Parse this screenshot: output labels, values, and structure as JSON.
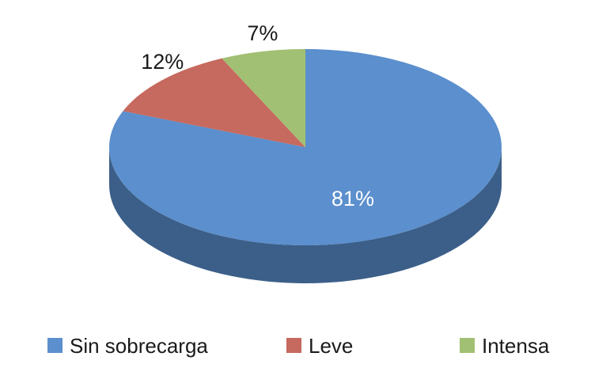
{
  "chart_data": {
    "type": "pie",
    "style": "3d",
    "legend_position": "bottom",
    "categories": [
      "Sin sobrecarga",
      "Leve",
      "Intensa"
    ],
    "values": [
      81,
      12,
      7
    ],
    "value_labels": [
      "81%",
      "12%",
      "7%"
    ],
    "colors": [
      "#5b8fcd",
      "#c6695e",
      "#a2c073"
    ],
    "side_colors": [
      "#3c5f89",
      "#87463f",
      "#6c814c"
    ]
  }
}
